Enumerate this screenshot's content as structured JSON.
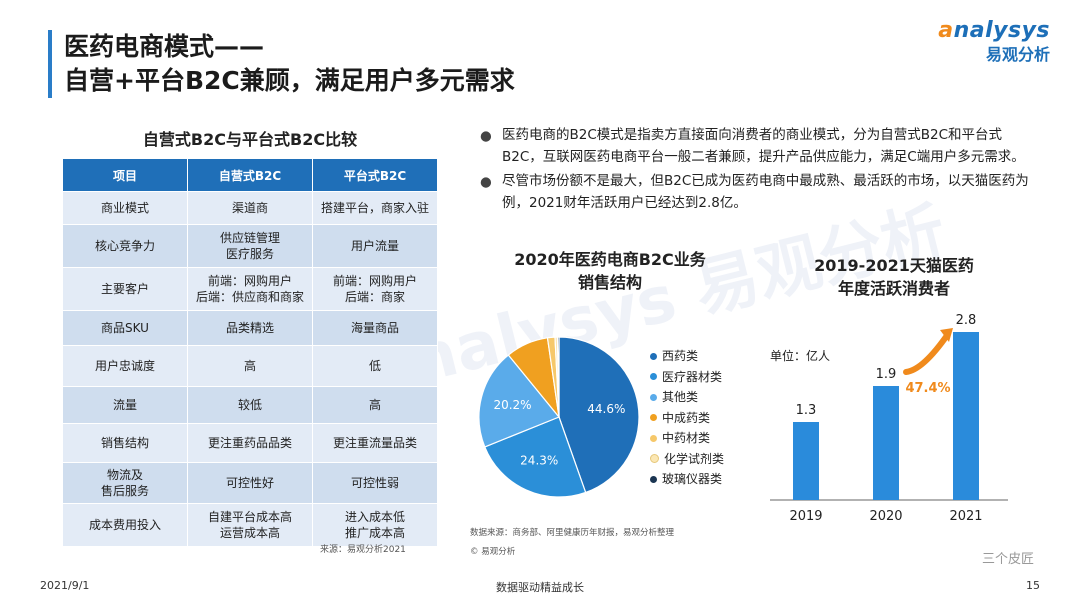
{
  "header": {
    "title_line1": "医药电商模式——",
    "title_line2": "自营+平台B2C兼顾，满足用户多元需求",
    "logo_en_a": "a",
    "logo_en_rest": "nalysys",
    "logo_cn": "易观分析"
  },
  "table": {
    "title": "自营式B2C与平台式B2C比较",
    "headers": [
      "项目",
      "自营式B2C",
      "平台式B2C"
    ],
    "rows": [
      [
        "商业模式",
        "渠道商",
        "搭建平台，商家入驻"
      ],
      [
        "核心竞争力",
        "供应链管理\n医疗服务",
        "用户流量"
      ],
      [
        "主要客户",
        "前端：网购用户\n后端：供应商和商家",
        "前端：网购用户\n后端：商家"
      ],
      [
        "商品SKU",
        "品类精选",
        "海量商品"
      ],
      [
        "用户忠诚度",
        "高",
        "低"
      ],
      [
        "流量",
        "较低",
        "高"
      ],
      [
        "销售结构",
        "更注重药品品类",
        "更注重流量品类"
      ],
      [
        "物流及\n售后服务",
        "可控性好",
        "可控性弱"
      ],
      [
        "成本费用投入",
        "自建平台成本高\n运营成本高",
        "进入成本低\n推广成本高"
      ]
    ],
    "source": "来源：易观分析2021"
  },
  "bullets": [
    "医药电商的B2C模式是指卖方直接面向消费者的商业模式，分为自营式B2C和平台式B2C，互联网医药电商平台一般二者兼顾，提升产品供应能力，满足C端用户多元需求。",
    "尽管市场份额不是最大，但B2C已成为医药电商中最成熟、最活跃的市场，以天猫医药为例，2021财年活跃用户已经达到2.8亿。"
  ],
  "watermark": "analysys 易观分析",
  "chart_source": "数据来源：商务部、阿里健康历年财报，易观分析整理",
  "chart_source2": "© 易观分析",
  "chart_data": [
    {
      "type": "pie",
      "title": "2020年医药电商B2C业务销售结构",
      "title_line1": "2020年医药电商B2C业务",
      "title_line2": "销售结构",
      "categories": [
        "西药类",
        "医疗器材类",
        "其他类",
        "中成药类",
        "中药材类",
        "化学试剂类",
        "玻璃仪器类"
      ],
      "values": [
        44.6,
        24.3,
        20.2,
        8.6,
        1.5,
        0.5,
        0.3
      ],
      "labels": [
        "44.6%",
        "24.3%",
        "20.2%",
        "",
        "",
        "",
        ""
      ],
      "colors": [
        "#1f6fb8",
        "#2b8fd8",
        "#5aabea",
        "#f0a020",
        "#f6c86a",
        "#fbe7b4",
        "#1b3552"
      ],
      "legend": "right"
    },
    {
      "type": "bar",
      "title": "2019-2021天猫医药年度活跃消费者",
      "title_line1": "2019-2021天猫医药",
      "title_line2": "年度活跃消费者",
      "categories": [
        "2019",
        "2020",
        "2021"
      ],
      "values": [
        1.3,
        1.9,
        2.8
      ],
      "value_labels": [
        "1.3",
        "1.9",
        "2.8"
      ],
      "unit": "单位：亿人",
      "annotation": "47.4%",
      "ylim": [
        0,
        3.0
      ],
      "color": "#2a8bdb",
      "annotation_color": "#f08a1c"
    }
  ],
  "footer": {
    "date": "2021/9/1",
    "slogan": "数据驱动精益成长",
    "page": "15",
    "wechat": "三个皮匠"
  }
}
